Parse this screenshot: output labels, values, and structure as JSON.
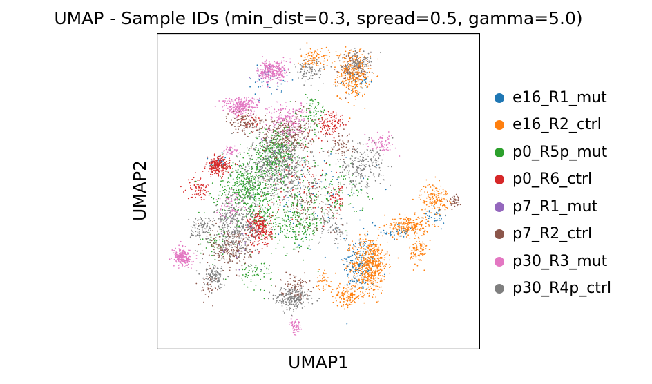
{
  "chart_data": {
    "type": "scatter",
    "title": "UMAP - Sample IDs (min_dist=0.3, spread=0.5, gamma=5.0)",
    "xlabel": "UMAP1",
    "ylabel": "UMAP2",
    "xlim": [
      0,
      10
    ],
    "ylim": [
      0,
      10
    ],
    "grid": false,
    "ticks": false,
    "legend_position": "right",
    "series": [
      {
        "name": "e16_R1_mut",
        "color": "#1f77b4",
        "clusters": [
          [
            6.3,
            2.7,
            0.6,
            1.0,
            0.25
          ],
          [
            1.9,
            5.9,
            0.3,
            0.3,
            0.05
          ],
          [
            6.1,
            8.5,
            0.5,
            0.5,
            0.05
          ],
          [
            7.5,
            3.7,
            0.5,
            0.3,
            0.05
          ],
          [
            3.5,
            8.5,
            1.0,
            0.6,
            0.04
          ],
          [
            5.5,
            4.5,
            1.5,
            1.5,
            0.06
          ],
          [
            8.6,
            4.2,
            0.5,
            0.3,
            0.04
          ],
          [
            4.4,
            5.0,
            1.5,
            1.2,
            0.05
          ]
        ]
      },
      {
        "name": "e16_R2_ctrl",
        "color": "#ff7f0e",
        "clusters": [
          [
            6.1,
            8.7,
            0.55,
            0.8,
            0.45
          ],
          [
            6.6,
            2.7,
            0.6,
            1.0,
            0.7
          ],
          [
            5.9,
            1.7,
            0.5,
            0.4,
            0.2
          ],
          [
            7.8,
            3.9,
            0.7,
            0.35,
            0.3
          ],
          [
            8.6,
            4.8,
            0.5,
            0.5,
            0.2
          ],
          [
            8.1,
            3.1,
            0.3,
            0.5,
            0.12
          ],
          [
            4.9,
            9.2,
            0.5,
            0.4,
            0.12
          ],
          [
            5.2,
            2.2,
            0.3,
            0.4,
            0.05
          ]
        ]
      },
      {
        "name": "p0_R5p_mut",
        "color": "#2ca02c",
        "clusters": [
          [
            2.8,
            5.1,
            1.1,
            1.0,
            0.6
          ],
          [
            3.7,
            6.2,
            0.9,
            0.8,
            0.5
          ],
          [
            4.4,
            4.0,
            0.8,
            1.0,
            0.3
          ],
          [
            4.8,
            7.5,
            0.5,
            0.6,
            0.1
          ],
          [
            5.5,
            5.0,
            1.0,
            1.0,
            0.15
          ],
          [
            3.0,
            2.4,
            0.7,
            0.5,
            0.08
          ],
          [
            1.8,
            3.4,
            0.4,
            0.5,
            0.06
          ],
          [
            3.3,
            4.2,
            0.8,
            0.8,
            0.15
          ]
        ]
      },
      {
        "name": "p0_R6_ctrl",
        "color": "#d62728",
        "clusters": [
          [
            3.2,
            3.8,
            0.4,
            0.6,
            0.35
          ],
          [
            1.9,
            5.8,
            0.4,
            0.3,
            0.3
          ],
          [
            1.3,
            5.1,
            0.4,
            0.4,
            0.1
          ],
          [
            5.4,
            7.1,
            0.5,
            0.5,
            0.15
          ],
          [
            2.9,
            7.2,
            0.4,
            0.3,
            0.05
          ],
          [
            4.3,
            5.5,
            1.2,
            1.2,
            0.15
          ],
          [
            5.6,
            4.8,
            0.3,
            0.5,
            0.06
          ]
        ]
      },
      {
        "name": "p7_R1_mut",
        "color": "#9467bd",
        "clusters": [
          [
            3.6,
            6.0,
            1.0,
            1.0,
            0.06
          ],
          [
            3.4,
            8.7,
            0.4,
            0.3,
            0.05
          ],
          [
            2.5,
            3.5,
            0.8,
            0.8,
            0.04
          ]
        ]
      },
      {
        "name": "p7_R2_ctrl",
        "color": "#8c564b",
        "clusters": [
          [
            4.0,
            6.8,
            0.9,
            0.7,
            0.4
          ],
          [
            2.3,
            3.2,
            0.7,
            0.8,
            0.3
          ],
          [
            2.7,
            7.2,
            0.5,
            0.4,
            0.15
          ],
          [
            6.0,
            8.9,
            0.5,
            0.6,
            0.1
          ],
          [
            4.3,
            2.0,
            0.5,
            0.4,
            0.12
          ],
          [
            5.7,
            6.5,
            0.5,
            0.5,
            0.08
          ],
          [
            9.2,
            4.7,
            0.2,
            0.2,
            0.05
          ],
          [
            4.7,
            4.5,
            1.0,
            1.0,
            0.15
          ],
          [
            1.6,
            2.0,
            0.3,
            0.4,
            0.05
          ]
        ]
      },
      {
        "name": "p30_R3_mut",
        "color": "#e377c2",
        "clusters": [
          [
            2.6,
            7.7,
            0.6,
            0.3,
            0.35
          ],
          [
            3.6,
            8.8,
            0.5,
            0.4,
            0.35
          ],
          [
            0.8,
            2.9,
            0.3,
            0.3,
            0.3
          ],
          [
            4.1,
            7.3,
            0.7,
            0.6,
            0.25
          ],
          [
            6.9,
            6.5,
            0.5,
            0.3,
            0.1
          ],
          [
            4.3,
            0.7,
            0.2,
            0.25,
            0.08
          ],
          [
            2.4,
            4.5,
            0.6,
            0.6,
            0.1
          ],
          [
            2.3,
            6.3,
            0.3,
            0.2,
            0.05
          ]
        ]
      },
      {
        "name": "p30_R4p_ctrl",
        "color": "#7f7f7f",
        "clusters": [
          [
            3.8,
            5.8,
            1.2,
            1.2,
            0.7
          ],
          [
            2.5,
            3.9,
            0.9,
            1.1,
            0.5
          ],
          [
            4.2,
            1.6,
            0.6,
            0.4,
            0.3
          ],
          [
            6.3,
            5.8,
            0.8,
            0.8,
            0.3
          ],
          [
            6.2,
            9.0,
            0.5,
            0.5,
            0.15
          ],
          [
            4.7,
            8.8,
            0.5,
            0.4,
            0.12
          ],
          [
            1.8,
            2.3,
            0.4,
            0.4,
            0.15
          ],
          [
            5.5,
            3.8,
            0.6,
            0.6,
            0.1
          ],
          [
            1.4,
            3.8,
            0.4,
            0.4,
            0.12
          ]
        ]
      }
    ]
  }
}
